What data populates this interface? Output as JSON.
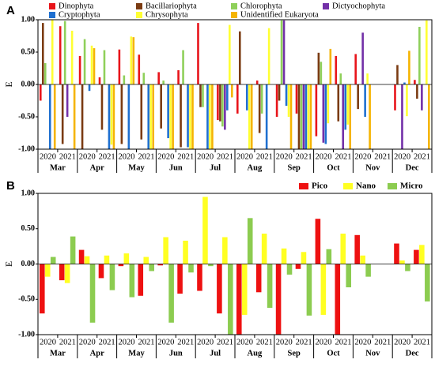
{
  "chart_data": [
    {
      "type": "bar",
      "panel": "A",
      "ylabel": "E",
      "categories": [
        "2020",
        "2021",
        "2020",
        "2021",
        "2020",
        "2021",
        "2020",
        "2021",
        "2020",
        "2021",
        "2020",
        "2021",
        "2020",
        "2021",
        "2020",
        "2021",
        "2020",
        "2021",
        "2020",
        "2021"
      ],
      "months": [
        "Mar",
        "Apr",
        "May",
        "Jun",
        "Jul",
        "Aug",
        "Sep",
        "Oct",
        "Nov",
        "Dec"
      ],
      "ylim": [
        -1,
        1
      ],
      "yticks": [
        {
          "value": -1,
          "label": "-1.00"
        },
        {
          "value": -0.5,
          "label": "-0.50"
        },
        {
          "value": 0,
          "label": "0.00"
        },
        {
          "value": 0.5,
          "label": "0.50"
        },
        {
          "value": 1,
          "label": "1.00"
        }
      ],
      "legend": "top",
      "series": [
        {
          "name": "Dinophyta",
          "color": "#e8141a",
          "values": [
            -0.25,
            0.9,
            0.44,
            0.11,
            0.54,
            0.46,
            0.19,
            0.22,
            0.95,
            -0.55,
            -0.45,
            0.06,
            -0.5,
            -0.45,
            -0.8,
            0.44,
            0.47,
            0,
            -0.4,
            0.07
          ]
        },
        {
          "name": "Bacillariophyta",
          "color": "#7b3b12",
          "values": [
            0.95,
            -0.92,
            -1,
            -0.7,
            -0.92,
            -0.85,
            -0.68,
            -0.97,
            -0.35,
            -0.57,
            0.82,
            -0.75,
            -0.25,
            -1,
            0.49,
            -0.57,
            -0.38,
            0,
            0.3,
            -0.22
          ]
        },
        {
          "name": "Chlorophyta",
          "color": "#8fd05a",
          "values": [
            0.33,
            0.98,
            0.7,
            0.53,
            0.14,
            0.18,
            0.06,
            0.53,
            -0.35,
            -0.65,
            0,
            -0.45,
            0.99,
            -1,
            0.35,
            0.17,
            0,
            0,
            0,
            0.89
          ]
        },
        {
          "name": "Dictyochophyta",
          "color": "#7330a8",
          "values": [
            0,
            -0.5,
            0,
            0,
            0,
            0,
            0,
            0,
            0,
            -0.7,
            0,
            0,
            0.99,
            -1,
            -0.9,
            -1,
            0.8,
            0,
            -1,
            -0.4
          ]
        },
        {
          "name": "Cryptophyta",
          "color": "#1f70d0",
          "values": [
            -1,
            0,
            -0.1,
            -1,
            -1,
            -1,
            -0.83,
            -0.97,
            -1,
            -0.4,
            -0.4,
            -1,
            -0.33,
            -1,
            -0.92,
            -0.7,
            -0.5,
            0,
            0.03,
            0
          ]
        },
        {
          "name": "Chrysophyta",
          "color": "#ffff33",
          "values": [
            1,
            0.83,
            0.6,
            -0.93,
            0.74,
            -1,
            -1,
            -1,
            -1,
            0.92,
            -1,
            0.87,
            -0.5,
            -1,
            -0.6,
            -0.62,
            0.17,
            0,
            -0.49,
            0.99
          ]
        },
        {
          "name": "Unidentified Eukaryota",
          "color": "#f5b400",
          "values": [
            -1,
            -1,
            0.56,
            -1,
            0.73,
            -1,
            -1,
            -1,
            -1,
            -0.2,
            -1,
            0,
            -1,
            -1,
            0.55,
            -1,
            -1,
            0,
            0.52,
            -1
          ]
        }
      ]
    },
    {
      "type": "bar",
      "panel": "B",
      "ylabel": "E",
      "categories": [
        "2020",
        "2021",
        "2020",
        "2021",
        "2020",
        "2021",
        "2020",
        "2021",
        "2020",
        "2021",
        "2020",
        "2021",
        "2020",
        "2021",
        "2020",
        "2021",
        "2020",
        "2021",
        "2020",
        "2021"
      ],
      "months": [
        "Mar",
        "Apr",
        "May",
        "Jun",
        "Jul",
        "Aug",
        "Sep",
        "Oct",
        "Nov",
        "Dec"
      ],
      "ylim": [
        -1,
        1
      ],
      "yticks": [
        {
          "value": -1,
          "label": "-1.00"
        },
        {
          "value": -0.5,
          "label": "-0.50"
        },
        {
          "value": 0,
          "label": "0.00"
        },
        {
          "value": 0.5,
          "label": "0.50"
        },
        {
          "value": 1,
          "label": "1.00"
        }
      ],
      "legend": "top right",
      "series": [
        {
          "name": "Pico",
          "color": "#ee1111",
          "values": [
            -0.7,
            -0.23,
            0.2,
            -0.2,
            -0.03,
            -0.45,
            -0.02,
            -0.42,
            -0.38,
            -0.7,
            -1,
            -0.4,
            -1,
            -0.07,
            0.64,
            -1,
            0.41,
            0,
            0.29,
            0.2
          ]
        },
        {
          "name": "Nano",
          "color": "#ffff22",
          "values": [
            -0.18,
            -0.27,
            0.11,
            0.12,
            0.15,
            0.1,
            0.38,
            0.33,
            0.95,
            0.38,
            -0.72,
            0.43,
            0.22,
            0.17,
            -0.72,
            0.43,
            0.12,
            0,
            0.05,
            0.27
          ]
        },
        {
          "name": "Micro",
          "color": "#8ccc50",
          "values": [
            0.1,
            0.39,
            -0.83,
            -0.37,
            -0.47,
            -0.1,
            -0.83,
            -0.12,
            -0.03,
            -1,
            0.65,
            -0.62,
            -0.15,
            -0.73,
            0.21,
            -0.33,
            -0.18,
            0,
            -0.1,
            -0.53
          ]
        }
      ]
    }
  ]
}
